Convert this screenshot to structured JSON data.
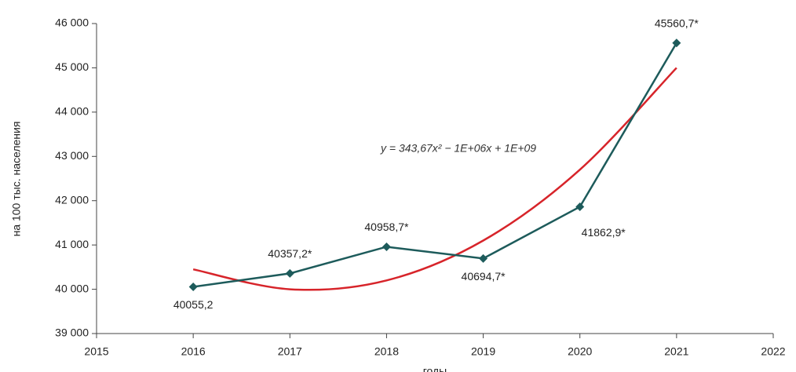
{
  "chart_data": {
    "type": "line",
    "x": [
      2016,
      2017,
      2018,
      2019,
      2020,
      2021
    ],
    "series": [
      {
        "color": "#1d5b5b",
        "values": [
          40055.2,
          40357.2,
          40958.7,
          40694.7,
          41862.9,
          45560.7
        ],
        "value_labels": [
          "40055,2",
          "40357,2*",
          "40958,7*",
          "40694,7*",
          "41862,9*",
          "45560,7*"
        ]
      }
    ],
    "trendline": {
      "color": "#d7242a",
      "equation": "y = 343,67x² − 1E+06x + 1E+09",
      "x": [
        2016,
        2017,
        2018,
        2019,
        2020,
        2021
      ],
      "values": [
        40450,
        40000,
        40200,
        41100,
        42700,
        45000
      ]
    },
    "xlim": [
      2015,
      2022
    ],
    "xticks": [
      2015,
      2016,
      2017,
      2018,
      2019,
      2020,
      2021,
      2022
    ],
    "ylim": [
      39000,
      46000
    ],
    "yticks": [
      {
        "value": 39000,
        "label": "39 000"
      },
      {
        "value": 40000,
        "label": "40 000"
      },
      {
        "value": 41000,
        "label": "41 000"
      },
      {
        "value": 42000,
        "label": "42 000"
      },
      {
        "value": 43000,
        "label": "43 000"
      },
      {
        "value": 44000,
        "label": "44 000"
      },
      {
        "value": 45000,
        "label": "45 000"
      },
      {
        "value": 46000,
        "label": "46 000"
      }
    ],
    "y_label": "на 100 тыс. населения",
    "x_label": "годы"
  }
}
